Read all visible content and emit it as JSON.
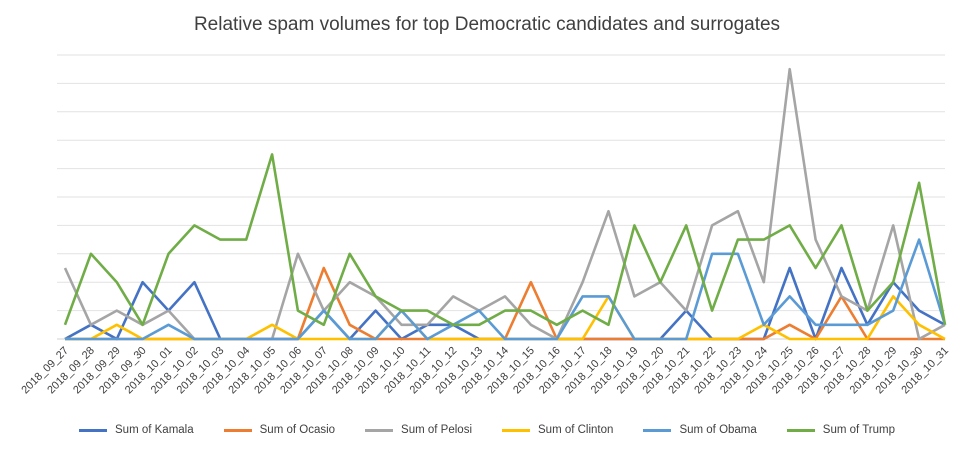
{
  "chart_data": {
    "type": "line",
    "title": "Relative spam volumes for top Democratic candidates and surrogates",
    "xlabel": "",
    "ylabel": "",
    "ylim": [
      0,
      10
    ],
    "grid": true,
    "legend_position": "bottom",
    "categories": [
      "2018_09_27",
      "2018_09_28",
      "2018_09_29",
      "2018_09_30",
      "2018_10_01",
      "2018_10_02",
      "2018_10_03",
      "2018_10_04",
      "2018_10_05",
      "2018_10_06",
      "2018_10_07",
      "2018_10_08",
      "2018_10_09",
      "2018_10_10",
      "2018_10_11",
      "2018_10_12",
      "2018_10_13",
      "2018_10_14",
      "2018_10_15",
      "2018_10_16",
      "2018_10_17",
      "2018_10_18",
      "2018_10_19",
      "2018_10_20",
      "2018_10_21",
      "2018_10_22",
      "2018_10_23",
      "2018_10_24",
      "2018_10_25",
      "2018_10_26",
      "2018_10_27",
      "2018_10_28",
      "2018_10_29",
      "2018_10_30",
      "2018_10_31"
    ],
    "series": [
      {
        "name": "Sum of Kamala",
        "color": "#4472C4",
        "values": [
          0,
          0.5,
          0,
          2,
          1,
          2,
          0,
          0,
          0,
          0,
          1,
          0,
          1,
          0,
          0.5,
          0.5,
          0,
          0,
          0,
          0,
          0,
          0,
          0,
          0,
          1,
          0,
          0,
          0,
          2.5,
          0,
          2.5,
          0.5,
          2,
          1,
          0.5
        ]
      },
      {
        "name": "Sum of Ocasio",
        "color": "#ED7D31",
        "values": [
          0,
          0,
          0,
          0,
          0,
          0,
          0,
          0,
          0,
          0,
          2.5,
          0.5,
          0,
          0,
          0,
          0,
          0,
          0,
          2,
          0,
          0,
          0,
          0,
          0,
          0,
          0,
          0,
          0,
          0.5,
          0,
          1.5,
          0,
          0,
          0,
          0
        ]
      },
      {
        "name": "Sum of Pelosi",
        "color": "#A5A5A5",
        "values": [
          2.5,
          0.5,
          1,
          0.5,
          1,
          0,
          0,
          0,
          0,
          3,
          1,
          2,
          1.5,
          0.5,
          0.5,
          1.5,
          1,
          1.5,
          0.5,
          0,
          2,
          4.5,
          1.5,
          2,
          1,
          4,
          4.5,
          2,
          9.5,
          3.5,
          1.5,
          1,
          4,
          0,
          0.5
        ]
      },
      {
        "name": "Sum of Clinton",
        "color": "#FFC000",
        "values": [
          0,
          0,
          0.5,
          0,
          0,
          0,
          0,
          0,
          0.5,
          0,
          0,
          0,
          0,
          1,
          0,
          0,
          0,
          0,
          0,
          0,
          0,
          1.5,
          0,
          0,
          0,
          0,
          0,
          0.5,
          0,
          0,
          0,
          0,
          1.5,
          0.5,
          0
        ]
      },
      {
        "name": "Sum of Obama",
        "color": "#5B9BD5",
        "values": [
          0,
          0,
          0,
          0,
          0.5,
          0,
          0,
          0,
          0,
          0,
          1,
          0,
          0,
          1,
          0,
          0.5,
          1,
          0,
          0,
          0,
          1.5,
          1.5,
          0,
          0,
          0,
          3,
          3,
          0.5,
          1.5,
          0.5,
          0.5,
          0.5,
          1,
          3.5,
          0.5
        ]
      },
      {
        "name": "Sum of Trump",
        "color": "#70AD47",
        "values": [
          0.5,
          3,
          2,
          0.5,
          3,
          4,
          3.5,
          3.5,
          6.5,
          1,
          0.5,
          3,
          1.5,
          1,
          1,
          0.5,
          0.5,
          1,
          1,
          0.5,
          1,
          0.5,
          4,
          2,
          4,
          1,
          3.5,
          3.5,
          4,
          2.5,
          4,
          1,
          2,
          5.5,
          0.5
        ]
      }
    ]
  }
}
